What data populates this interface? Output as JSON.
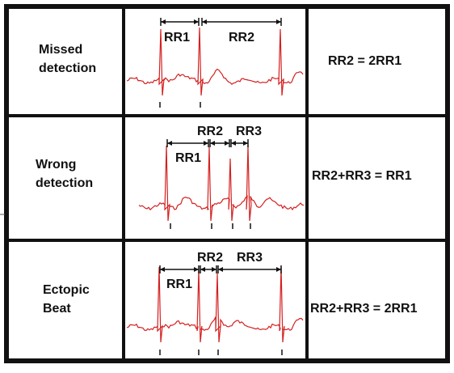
{
  "rows": [
    {
      "label_lines": [
        "Missed",
        "detection"
      ],
      "intervals": [
        "RR1",
        "RR2"
      ],
      "formula": "RR2 = 2RR1"
    },
    {
      "label_lines": [
        "Wrong",
        "detection"
      ],
      "intervals": [
        "RR1",
        "RR2",
        "RR3"
      ],
      "formula": "RR2+RR3 = RR1"
    },
    {
      "label_lines": [
        "Ectopic",
        "Beat"
      ],
      "intervals": [
        "RR1",
        "RR2",
        "RR3"
      ],
      "formula": "RR2+RR3 = 2RR1"
    }
  ],
  "colors": {
    "border": "#111111",
    "ecg_trace": "#d42020",
    "annotation": "#111111"
  }
}
